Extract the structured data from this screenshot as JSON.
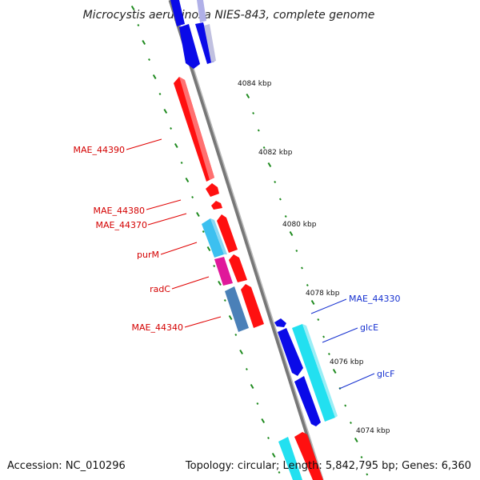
{
  "map": {
    "title": "Microcystis aeruginosa NIES-843, complete genome",
    "accession": "Accession: NC_010296",
    "summary": "Topology: circular; Length: 5,842,795 bp; Genes: 6,360"
  },
  "scale": {
    "ticks": [
      "4084 kbp",
      "4082 kbp",
      "4080 kbp",
      "4078 kbp",
      "4076 kbp",
      "4074 kbp"
    ]
  },
  "gene_labels": {
    "forward": [
      "MAE_44330",
      "glcE",
      "glcF"
    ],
    "reverse": [
      "MAE_44390",
      "MAE_44380",
      "MAE_44370",
      "purM",
      "radC",
      "MAE_44340"
    ]
  },
  "colors": {
    "backbone": "#888888",
    "reverse_gene": "#ff0000",
    "forward_gene": "#1010ee",
    "cyan_gene": "#22e0f0",
    "steelblue_gene": "#4a80b8",
    "magenta_gene": "#e0189a",
    "skyblue_gene": "#3cc0f0",
    "tick_green": "#1e8a1e",
    "label_red": "#d40000",
    "label_blue": "#1530d0"
  }
}
